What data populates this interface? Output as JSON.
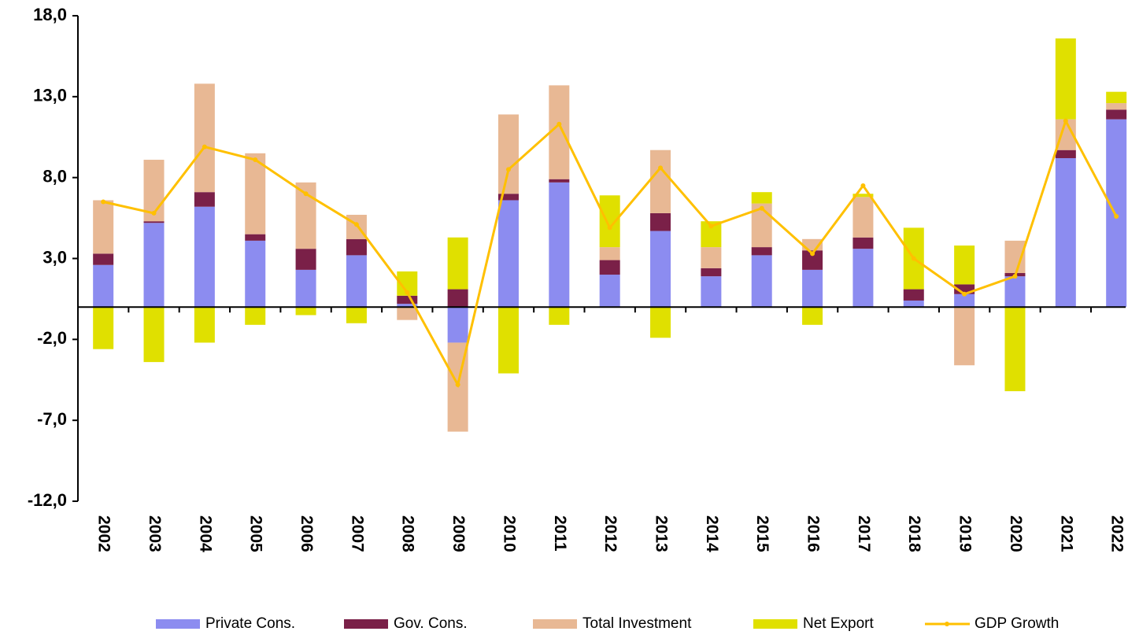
{
  "chart_data": {
    "type": "bar",
    "stacked": true,
    "categories": [
      "2002",
      "2003",
      "2004",
      "2005",
      "2006",
      "2007",
      "2008",
      "2009",
      "2010",
      "2011",
      "2012",
      "2013",
      "2014",
      "2015",
      "2016",
      "2017",
      "2018",
      "2019",
      "2020",
      "2021",
      "2022"
    ],
    "ylim": [
      -12,
      18
    ],
    "yticks": [
      {
        "value": -12,
        "label": "-12,0"
      },
      {
        "value": -7,
        "label": "-7,0"
      },
      {
        "value": -2,
        "label": "-2,0"
      },
      {
        "value": 3,
        "label": "3,0"
      },
      {
        "value": 8,
        "label": "8,0"
      },
      {
        "value": 13,
        "label": "13,0"
      },
      {
        "value": 18,
        "label": "18,0"
      }
    ],
    "series": [
      {
        "name": "Private Cons.",
        "color": "#8c8cf0",
        "values": [
          2.6,
          5.2,
          6.2,
          4.1,
          2.3,
          3.2,
          0.2,
          -2.2,
          6.6,
          7.7,
          2.0,
          4.7,
          1.9,
          3.2,
          2.3,
          3.6,
          0.4,
          0.8,
          1.9,
          9.2,
          11.6
        ]
      },
      {
        "name": "Gov. Cons.",
        "color": "#7a2048",
        "values": [
          0.7,
          0.1,
          0.9,
          0.4,
          1.3,
          1.0,
          0.5,
          1.1,
          0.4,
          0.2,
          0.9,
          1.1,
          0.5,
          0.5,
          1.2,
          0.7,
          0.7,
          0.6,
          0.2,
          0.5,
          0.6
        ]
      },
      {
        "name": "Total Investment",
        "color": "#e8b894",
        "values": [
          3.3,
          3.8,
          6.7,
          5.0,
          4.1,
          1.5,
          -0.8,
          -5.5,
          4.9,
          5.8,
          0.8,
          3.9,
          1.3,
          2.7,
          0.7,
          2.5,
          0,
          -3.6,
          2.0,
          1.9,
          0.4
        ]
      },
      {
        "name": "Net Export",
        "color": "#e0e000",
        "values": [
          -2.6,
          -3.4,
          -2.2,
          -1.1,
          -0.5,
          -1.0,
          1.5,
          3.2,
          -4.1,
          -1.1,
          3.2,
          -1.9,
          1.6,
          0.7,
          -1.1,
          0.2,
          3.8,
          2.4,
          -5.2,
          5.0,
          0.7
        ]
      },
      {
        "name": "GDP Growth",
        "type": "line",
        "color": "#ffc000",
        "values": [
          6.5,
          5.8,
          9.9,
          9.1,
          7.0,
          5.1,
          0.9,
          -4.8,
          8.5,
          11.3,
          4.9,
          8.6,
          5.0,
          6.1,
          3.3,
          7.5,
          3.0,
          0.8,
          1.9,
          11.5,
          5.6
        ]
      }
    ]
  }
}
